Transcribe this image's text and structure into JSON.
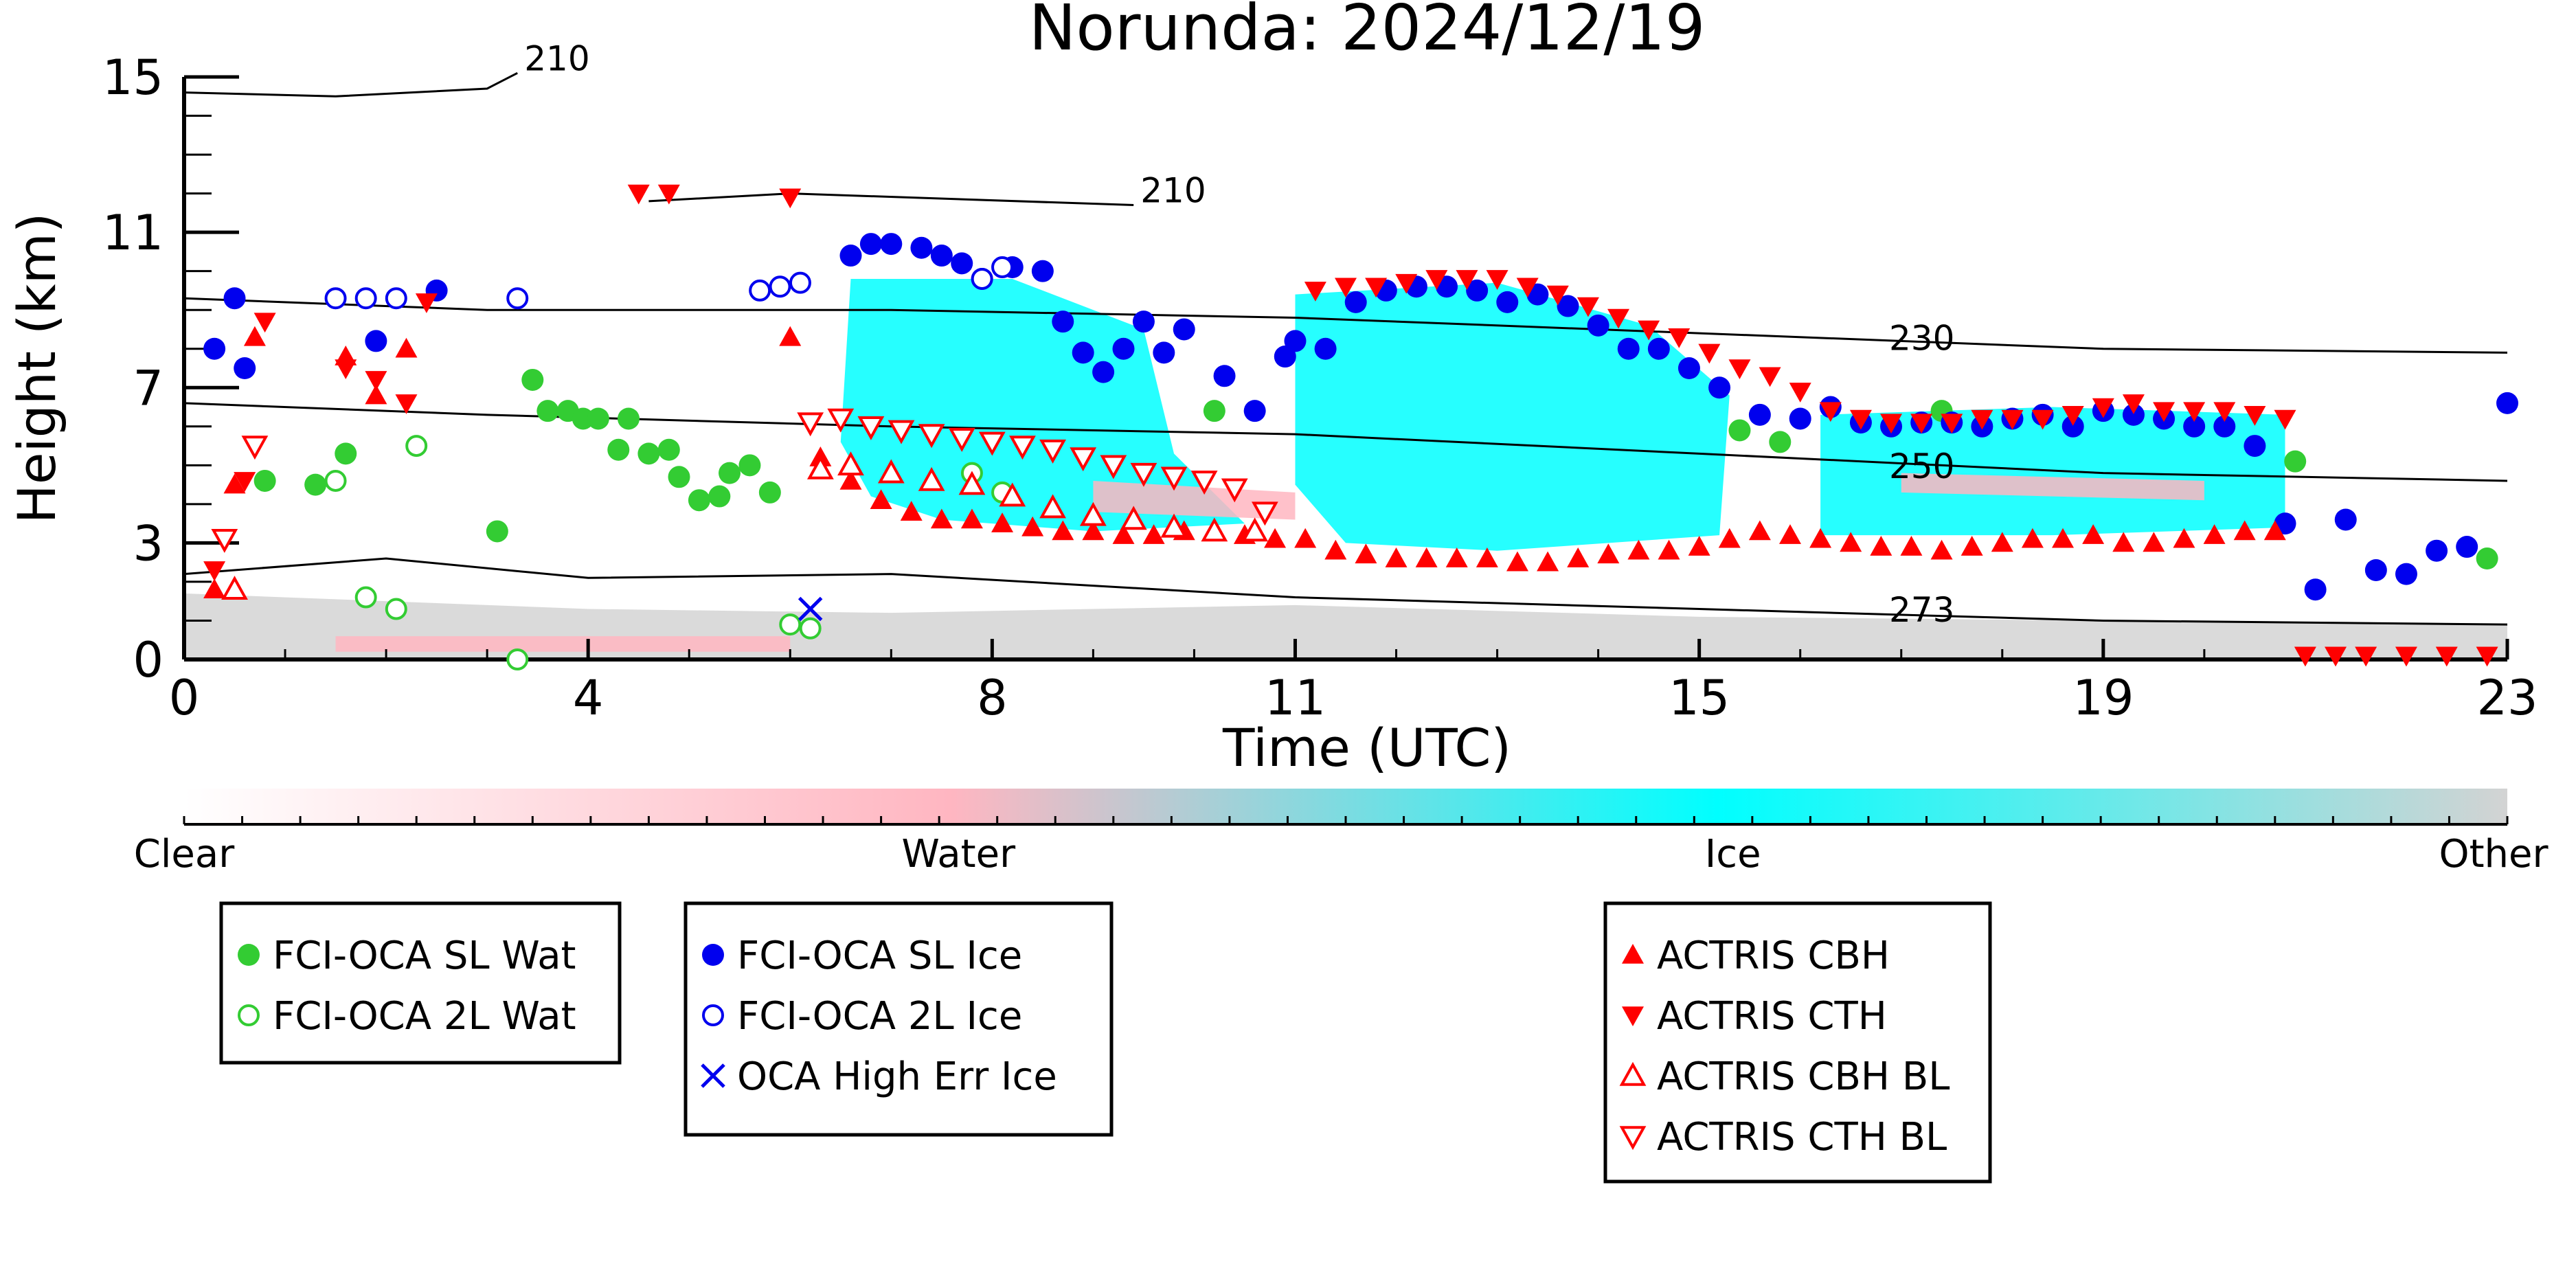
{
  "chart_data": {
    "type": "scatter",
    "title": "Norunda: 2024/12/19",
    "xlabel": "Time (UTC)",
    "ylabel": "Height (km)",
    "xlim": [
      0,
      23
    ],
    "ylim": [
      0,
      15
    ],
    "x_ticks": [
      "0",
      "4",
      "8",
      "11",
      "15",
      "19",
      "23"
    ],
    "y_ticks": [
      "0",
      "3",
      "7",
      "11",
      "15"
    ],
    "colors": {
      "water_green": "#33cc33",
      "ice_blue": "#0000ee",
      "actris_red": "#ff0000",
      "ice_cyan": "#00ffff",
      "water_pink": "#ffb6c1",
      "other_gray": "#d3d3d3"
    },
    "colorbar": {
      "labels": [
        "Clear",
        "Water",
        "Ice",
        "Other"
      ]
    },
    "temperature_contours": [
      {
        "label": "210",
        "points": [
          [
            0.0,
            14.6
          ],
          [
            1.5,
            14.5
          ],
          [
            3.0,
            14.7
          ],
          [
            3.3,
            15.1
          ]
        ]
      },
      {
        "label": "210",
        "points": [
          [
            4.6,
            11.8
          ],
          [
            6.0,
            12.0
          ],
          [
            9.4,
            11.7
          ]
        ]
      },
      {
        "label": "230",
        "points": [
          [
            0.0,
            9.3
          ],
          [
            3.0,
            9.0
          ],
          [
            7.0,
            9.0
          ],
          [
            11.0,
            8.8
          ],
          [
            15.0,
            8.4
          ],
          [
            19.0,
            8.0
          ],
          [
            23.0,
            7.9
          ]
        ]
      },
      {
        "label": "250",
        "points": [
          [
            0.0,
            6.6
          ],
          [
            3.0,
            6.3
          ],
          [
            7.0,
            6.0
          ],
          [
            11.0,
            5.8
          ],
          [
            15.0,
            5.3
          ],
          [
            19.0,
            4.8
          ],
          [
            23.0,
            4.6
          ]
        ]
      },
      {
        "label": "273",
        "points": [
          [
            0.0,
            2.2
          ],
          [
            2.0,
            2.6
          ],
          [
            4.0,
            2.1
          ],
          [
            7.0,
            2.2
          ],
          [
            11.0,
            1.6
          ],
          [
            15.0,
            1.3
          ],
          [
            19.0,
            1.0
          ],
          [
            23.0,
            0.9
          ]
        ]
      }
    ],
    "series": [
      {
        "name": "FCI-OCA SL Wat",
        "marker": "filled-circle",
        "color": "#33cc33",
        "x": [
          0.8,
          1.3,
          1.6,
          3.1,
          3.45,
          3.6,
          3.8,
          3.95,
          4.1,
          4.3,
          4.4,
          4.6,
          4.8,
          4.9,
          5.1,
          5.3,
          5.4,
          5.6,
          5.8,
          10.2,
          15.4,
          15.8,
          17.4,
          20.9,
          22.8
        ],
        "y": [
          4.6,
          4.5,
          5.3,
          3.3,
          7.2,
          6.4,
          6.4,
          6.2,
          6.2,
          5.4,
          6.2,
          5.3,
          5.4,
          4.7,
          4.1,
          4.2,
          4.8,
          5.0,
          4.3,
          6.4,
          5.9,
          5.6,
          6.4,
          5.1,
          2.6
        ]
      },
      {
        "name": "FCI-OCA 2L Wat",
        "marker": "open-circle",
        "color": "#33cc33",
        "x": [
          1.5,
          1.8,
          2.1,
          2.3,
          3.3,
          6.0,
          6.2,
          7.8,
          8.1
        ],
        "y": [
          4.6,
          1.6,
          1.3,
          5.5,
          0.0,
          0.9,
          0.8,
          4.8,
          4.3
        ]
      },
      {
        "name": "FCI-OCA SL Ice",
        "marker": "filled-circle",
        "color": "#0000ee",
        "x": [
          0.3,
          0.5,
          0.6,
          1.9,
          2.5,
          6.6,
          6.8,
          7.0,
          7.3,
          7.5,
          7.7,
          7.9,
          8.2,
          8.5,
          8.7,
          8.9,
          9.1,
          9.3,
          9.5,
          9.7,
          9.9,
          10.3,
          10.6,
          10.9,
          11.0,
          11.3,
          11.6,
          11.9,
          12.2,
          12.5,
          12.8,
          13.1,
          13.4,
          13.7,
          14.0,
          14.3,
          14.6,
          14.9,
          15.2,
          15.6,
          16.0,
          16.3,
          16.6,
          16.9,
          17.2,
          17.5,
          17.8,
          18.1,
          18.4,
          18.7,
          19.0,
          19.3,
          19.6,
          19.9,
          20.2,
          20.5,
          20.8,
          21.1,
          21.4,
          21.7,
          22.0,
          22.3,
          22.6,
          23.0
        ],
        "y": [
          8.0,
          9.3,
          7.5,
          8.2,
          9.5,
          10.4,
          10.7,
          10.7,
          10.6,
          10.4,
          10.2,
          9.8,
          10.1,
          10.0,
          8.7,
          7.9,
          7.4,
          8.0,
          8.7,
          7.9,
          8.5,
          7.3,
          6.4,
          7.8,
          8.2,
          8.0,
          9.2,
          9.5,
          9.6,
          9.6,
          9.5,
          9.2,
          9.4,
          9.1,
          8.6,
          8.0,
          8.0,
          7.5,
          7.0,
          6.3,
          6.2,
          6.5,
          6.1,
          6.0,
          6.1,
          6.1,
          6.0,
          6.2,
          6.3,
          6.0,
          6.4,
          6.3,
          6.2,
          6.0,
          6.0,
          5.5,
          3.5,
          1.8,
          3.6,
          2.3,
          2.2,
          2.8,
          2.9,
          6.6
        ]
      },
      {
        "name": "FCI-OCA 2L Ice",
        "marker": "open-circle",
        "color": "#0000ee",
        "x": [
          1.5,
          1.8,
          2.1,
          3.3,
          5.7,
          5.9,
          6.1,
          7.9,
          8.1
        ],
        "y": [
          9.3,
          9.3,
          9.3,
          9.3,
          9.5,
          9.6,
          9.7,
          9.8,
          10.1
        ]
      },
      {
        "name": "OCA High Err Ice",
        "marker": "x",
        "color": "#0000ee",
        "x": [
          6.2
        ],
        "y": [
          1.3
        ]
      },
      {
        "name": "ACTRIS CBH",
        "marker": "triangle-up",
        "color": "#ff0000",
        "x": [
          0.3,
          0.5,
          0.7,
          1.6,
          1.9,
          2.2,
          6.0,
          6.3,
          6.6,
          6.9,
          7.2,
          7.5,
          7.8,
          8.1,
          8.4,
          8.7,
          9.0,
          9.3,
          9.6,
          9.9,
          10.2,
          10.5,
          10.8,
          11.1,
          11.4,
          11.7,
          12.0,
          12.3,
          12.6,
          12.9,
          13.2,
          13.5,
          13.8,
          14.1,
          14.4,
          14.7,
          15.0,
          15.3,
          15.6,
          15.9,
          16.2,
          16.5,
          16.8,
          17.1,
          17.4,
          17.7,
          18.0,
          18.3,
          18.6,
          18.9,
          19.2,
          19.5,
          19.8,
          20.1,
          20.4,
          20.7
        ],
        "y": [
          1.8,
          4.5,
          8.3,
          7.8,
          6.8,
          8.0,
          8.3,
          5.2,
          4.6,
          4.1,
          3.8,
          3.6,
          3.6,
          3.5,
          3.4,
          3.3,
          3.3,
          3.2,
          3.2,
          3.3,
          3.3,
          3.2,
          3.1,
          3.1,
          2.8,
          2.7,
          2.6,
          2.6,
          2.6,
          2.6,
          2.5,
          2.5,
          2.6,
          2.7,
          2.8,
          2.8,
          2.9,
          3.1,
          3.3,
          3.2,
          3.1,
          3.0,
          2.9,
          2.9,
          2.8,
          2.9,
          3.0,
          3.1,
          3.1,
          3.2,
          3.0,
          3.0,
          3.1,
          3.2,
          3.3,
          3.3
        ]
      },
      {
        "name": "ACTRIS CTH",
        "marker": "triangle-down",
        "color": "#ff0000",
        "x": [
          0.3,
          0.6,
          0.8,
          1.6,
          1.9,
          2.2,
          2.4,
          4.5,
          4.8,
          6.0,
          11.2,
          11.5,
          11.8,
          12.1,
          12.4,
          12.7,
          13.0,
          13.3,
          13.6,
          13.9,
          14.2,
          14.5,
          14.8,
          15.1,
          15.4,
          15.7,
          16.0,
          16.3,
          16.6,
          16.9,
          17.2,
          17.5,
          17.8,
          18.1,
          18.4,
          18.7,
          19.0,
          19.3,
          19.6,
          19.9,
          20.2,
          20.5,
          20.8,
          21.0,
          21.3,
          21.6,
          22.0,
          22.4,
          22.8
        ],
        "y": [
          2.3,
          4.6,
          8.7,
          7.5,
          7.2,
          6.6,
          9.2,
          12.0,
          12.0,
          11.9,
          9.5,
          9.6,
          9.6,
          9.7,
          9.8,
          9.8,
          9.8,
          9.6,
          9.4,
          9.1,
          8.8,
          8.5,
          8.3,
          7.9,
          7.5,
          7.3,
          6.9,
          6.4,
          6.2,
          6.1,
          6.1,
          6.1,
          6.2,
          6.2,
          6.2,
          6.3,
          6.5,
          6.6,
          6.4,
          6.4,
          6.4,
          6.3,
          6.2,
          0.1,
          0.1,
          0.1,
          0.1,
          0.1,
          0.1
        ]
      },
      {
        "name": "ACTRIS CBH BL",
        "marker": "open-triangle-up",
        "color": "#ff0000",
        "x": [
          0.5,
          6.3,
          6.6,
          7.0,
          7.4,
          7.8,
          8.2,
          8.6,
          9.0,
          9.4,
          9.8,
          10.2,
          10.6
        ],
        "y": [
          1.8,
          4.9,
          5.0,
          4.8,
          4.6,
          4.5,
          4.2,
          3.9,
          3.7,
          3.6,
          3.4,
          3.3,
          3.3
        ]
      },
      {
        "name": "ACTRIS CTH BL",
        "marker": "open-triangle-down",
        "color": "#ff0000",
        "x": [
          0.4,
          0.7,
          6.2,
          6.5,
          6.8,
          7.1,
          7.4,
          7.7,
          8.0,
          8.3,
          8.6,
          8.9,
          9.2,
          9.5,
          9.8,
          10.1,
          10.4,
          10.7
        ],
        "y": [
          3.1,
          5.5,
          6.1,
          6.2,
          6.0,
          5.9,
          5.8,
          5.7,
          5.6,
          5.5,
          5.4,
          5.2,
          5.0,
          4.8,
          4.7,
          4.6,
          4.4,
          3.8
        ]
      }
    ]
  }
}
